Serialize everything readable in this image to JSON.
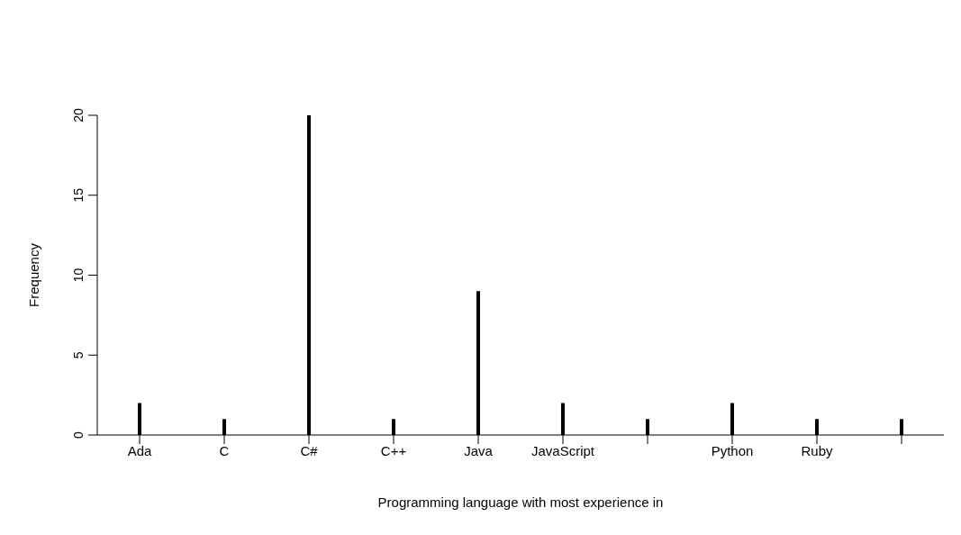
{
  "chart_data": {
    "type": "bar",
    "categories": [
      "Ada",
      "C",
      "C#",
      "C++",
      "Java",
      "JavaScript",
      null,
      "Python",
      "Ruby",
      null
    ],
    "values": [
      2,
      1,
      20,
      1,
      9,
      2,
      1,
      2,
      1,
      1
    ],
    "color": "#000000",
    "xlabel": "Programming language with most experience in",
    "ylabel": "Frequency",
    "ylim": [
      0,
      20
    ],
    "yticks": [
      0,
      5,
      10,
      15,
      20
    ]
  }
}
